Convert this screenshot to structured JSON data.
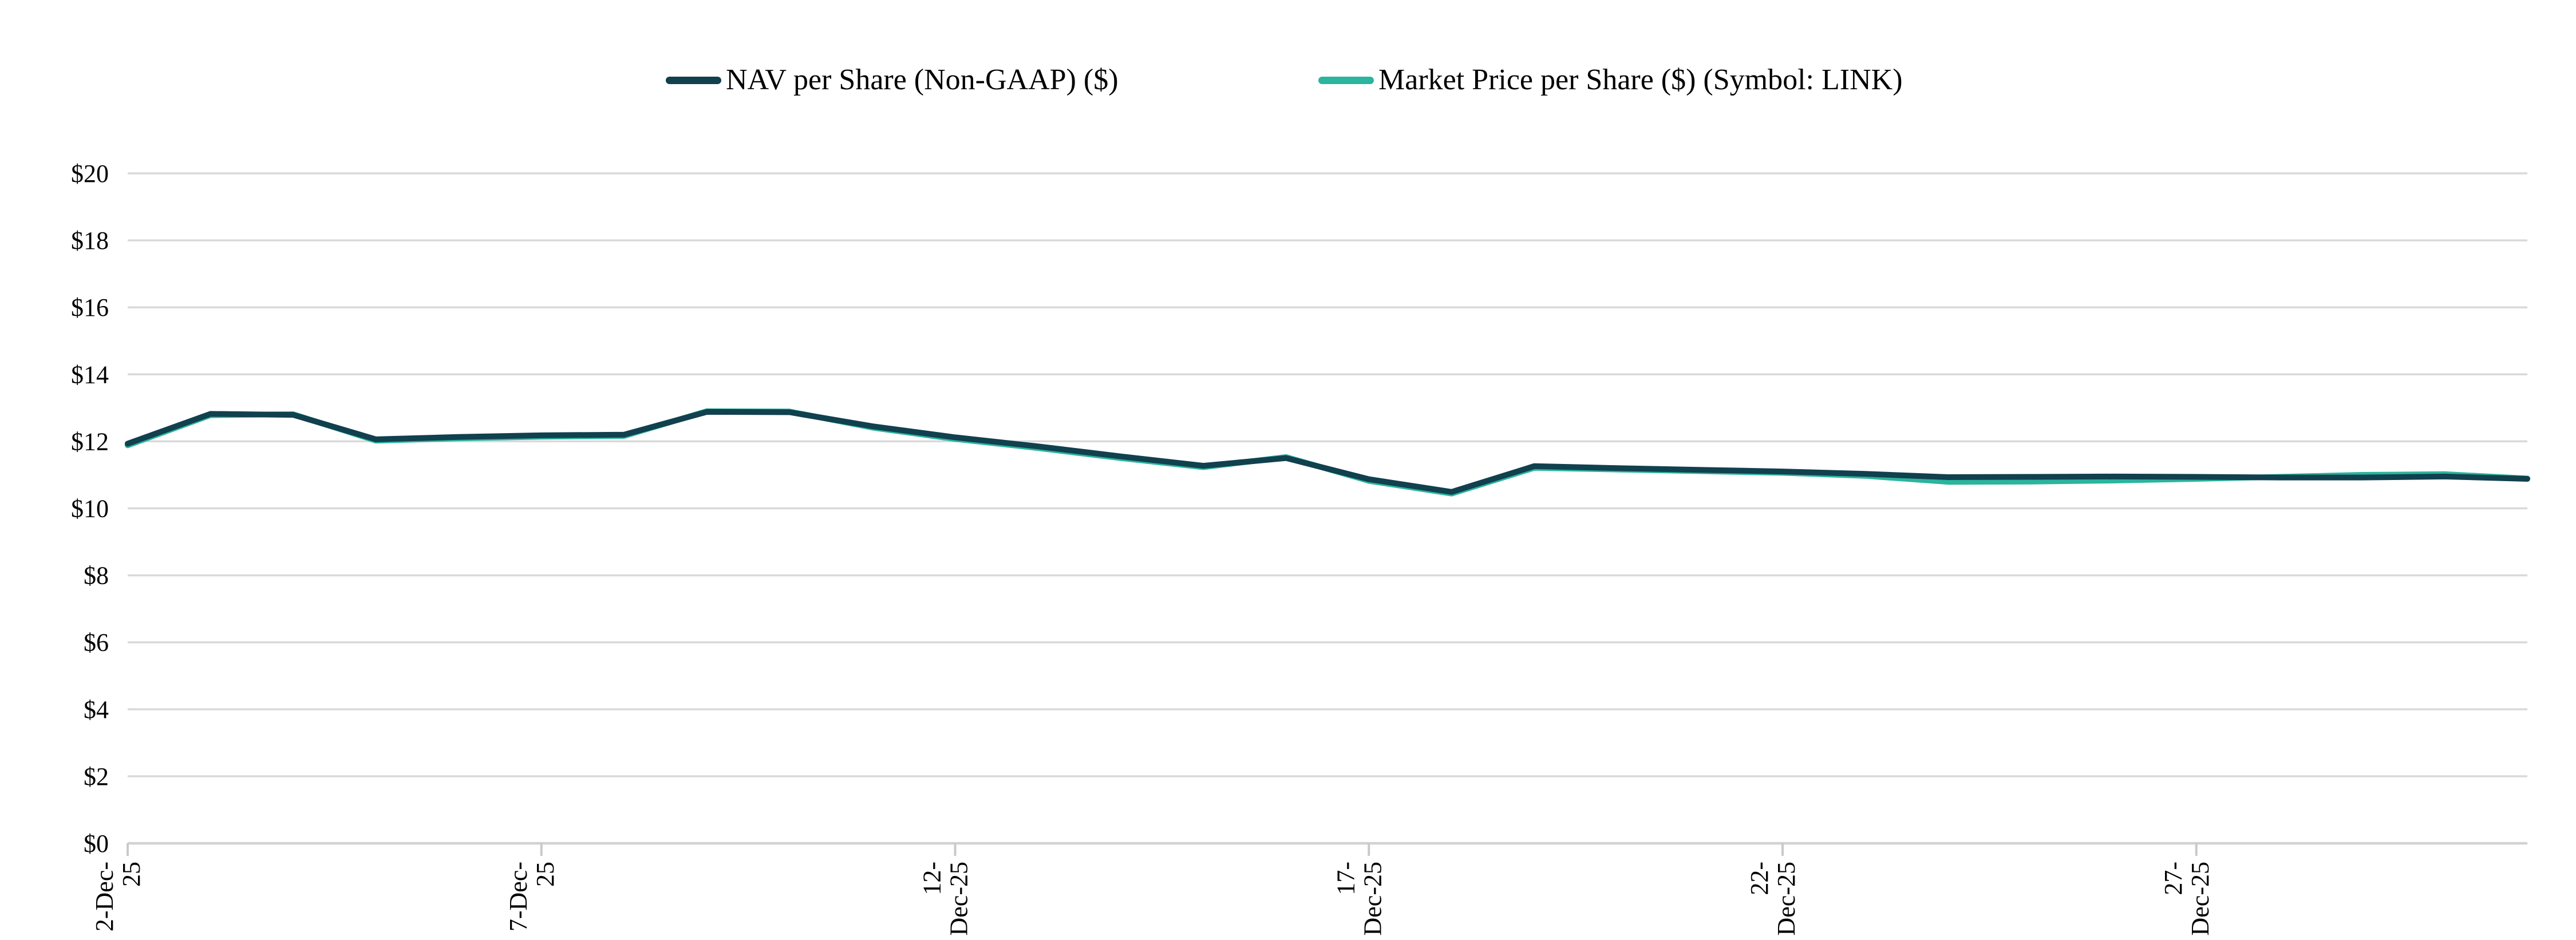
{
  "chart_data": {
    "type": "line",
    "title": "",
    "xlabel": "",
    "ylabel": "",
    "ylim": [
      0,
      20
    ],
    "ytick_step": 2,
    "grid": "horizontal",
    "legend_position": "top-center",
    "colors": {
      "gridline": "#D9D9D9",
      "axis_line": "#D2D2D2",
      "tick_mark": "#C9C9C9",
      "text": "#000000"
    },
    "y_ticks": [
      {
        "value": 0,
        "label": "$0"
      },
      {
        "value": 2,
        "label": "$2"
      },
      {
        "value": 4,
        "label": "$4"
      },
      {
        "value": 6,
        "label": "$6"
      },
      {
        "value": 8,
        "label": "$8"
      },
      {
        "value": 10,
        "label": "$10"
      },
      {
        "value": 12,
        "label": "$12"
      },
      {
        "value": 14,
        "label": "$14"
      },
      {
        "value": 16,
        "label": "$16"
      },
      {
        "value": 18,
        "label": "$18"
      },
      {
        "value": 20,
        "label": "$20"
      }
    ],
    "x_ticks": [
      {
        "day": 2,
        "lines": [
          "2-Dec-",
          "25"
        ]
      },
      {
        "day": 7,
        "lines": [
          "7-Dec-",
          "25"
        ]
      },
      {
        "day": 12,
        "lines": [
          "12-",
          "Dec-25"
        ]
      },
      {
        "day": 17,
        "lines": [
          "17-",
          "Dec-25"
        ]
      },
      {
        "day": 22,
        "lines": [
          "22-",
          "Dec-25"
        ]
      },
      {
        "day": 27,
        "lines": [
          "27-",
          "Dec-25"
        ]
      }
    ],
    "days": [
      2,
      3,
      4,
      5,
      6,
      7,
      8,
      9,
      10,
      11,
      12,
      13,
      14,
      15,
      16,
      17,
      18,
      19,
      20,
      21,
      22,
      23,
      24,
      25,
      26,
      27,
      28,
      29,
      30,
      31
    ],
    "series": [
      {
        "name": "Market Price per Share ($) (Symbol: LINK)",
        "color": "#2BB49E",
        "values": [
          11.88,
          12.78,
          12.81,
          12.02,
          12.09,
          12.14,
          12.16,
          12.9,
          12.89,
          12.41,
          12.07,
          11.8,
          11.5,
          11.23,
          11.53,
          10.82,
          10.44,
          11.21,
          11.16,
          11.11,
          11.06,
          10.97,
          10.79,
          10.8,
          10.83,
          10.88,
          10.94,
          11.0,
          11.02,
          10.89
        ]
      },
      {
        "name": "NAV per Share (Non-GAAP) ($)",
        "color": "#11404E",
        "values": [
          11.93,
          12.82,
          12.79,
          12.06,
          12.13,
          12.18,
          12.2,
          12.88,
          12.87,
          12.45,
          12.12,
          11.85,
          11.55,
          11.27,
          11.5,
          10.87,
          10.49,
          11.26,
          11.2,
          11.15,
          11.1,
          11.03,
          10.93,
          10.94,
          10.95,
          10.94,
          10.92,
          10.92,
          10.95,
          10.88
        ]
      }
    ]
  }
}
